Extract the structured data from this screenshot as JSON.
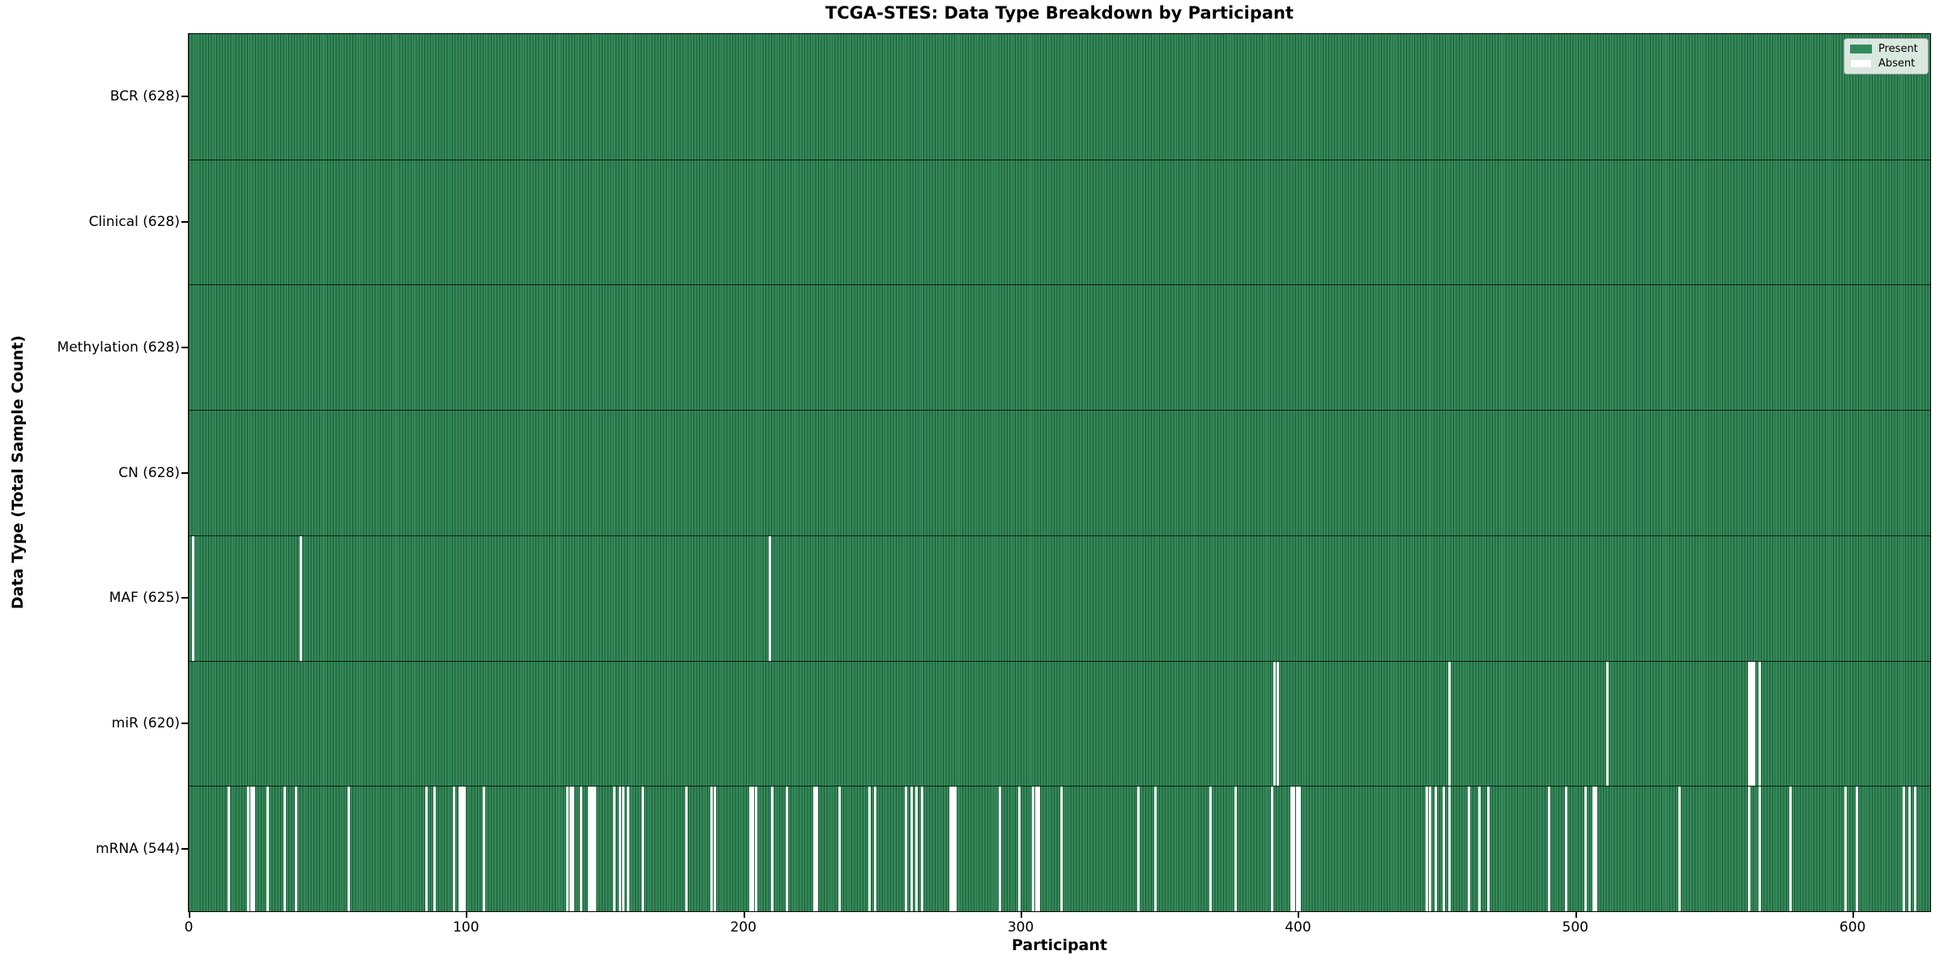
{
  "colors": {
    "present": "#338a59",
    "bar_separator": "#1f5838",
    "absent": "#ffffff",
    "row_divider": "#1a1a1a",
    "plot_border": "#000000"
  },
  "chart_data": {
    "type": "heatmap",
    "title": "TCGA-STES: Data Type Breakdown by Participant",
    "xlabel": "Participant",
    "ylabel": "Data Type (Total Sample Count)",
    "n_participants": 628,
    "xlim": [
      0,
      628
    ],
    "x_ticks": [
      0,
      100,
      200,
      300,
      400,
      500,
      600
    ],
    "grid": false,
    "legend": [
      "Present",
      "Absent"
    ],
    "legend_position": "upper right",
    "cell_encoding": "green = data present for participant, white = data absent",
    "rows": [
      {
        "name": "BCR",
        "label": "BCR (628)",
        "present_count": 628,
        "absent_participants": []
      },
      {
        "name": "Clinical",
        "label": "Clinical (628)",
        "present_count": 628,
        "absent_participants": []
      },
      {
        "name": "Methylation",
        "label": "Methylation (628)",
        "present_count": 628,
        "absent_participants": []
      },
      {
        "name": "CN",
        "label": "CN (628)",
        "present_count": 628,
        "absent_participants": []
      },
      {
        "name": "MAF",
        "label": "MAF (625)",
        "present_count": 625,
        "absent_participants": [
          1,
          40,
          209
        ]
      },
      {
        "name": "miR",
        "label": "miR (620)",
        "present_count": 620,
        "absent_participants": [
          391,
          392,
          454,
          511,
          562,
          563,
          564,
          566
        ]
      },
      {
        "name": "mRNA",
        "label": "mRNA (544)",
        "present_count": 544,
        "absent_participants": [
          14,
          21,
          22,
          23,
          28,
          34,
          38,
          57,
          85,
          88,
          95,
          97,
          98,
          99,
          106,
          136,
          137,
          138,
          141,
          144,
          145,
          146,
          153,
          155,
          156,
          158,
          163,
          179,
          188,
          189,
          202,
          203,
          204,
          210,
          215,
          225,
          226,
          234,
          245,
          247,
          258,
          260,
          262,
          264,
          274,
          275,
          276,
          292,
          299,
          304,
          305,
          306,
          314,
          342,
          348,
          368,
          377,
          390,
          397,
          398,
          399,
          400,
          446,
          447,
          449,
          452,
          454,
          461,
          465,
          468,
          490,
          496,
          503,
          506,
          507,
          537,
          562,
          566,
          577,
          597,
          601,
          618,
          620,
          622
        ]
      }
    ]
  }
}
